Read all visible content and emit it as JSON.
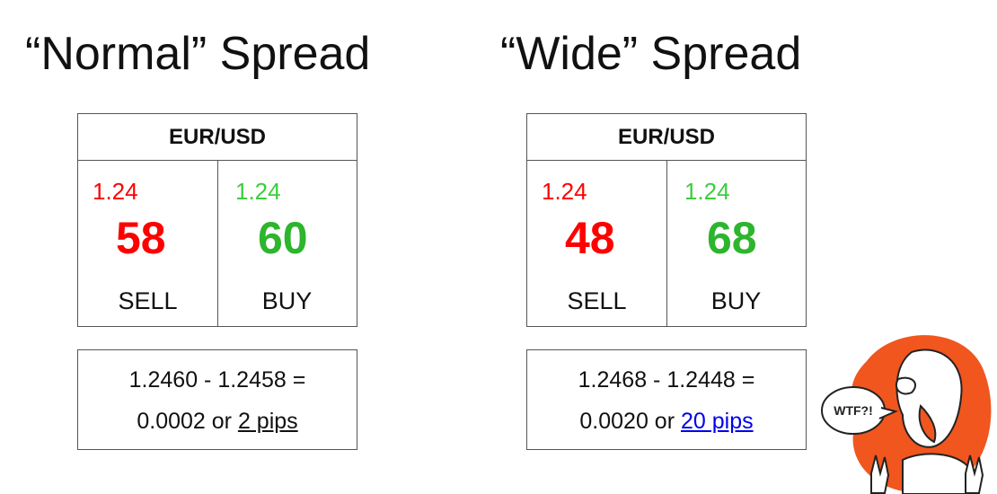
{
  "normal": {
    "title": "“Normal” Spread",
    "pair": "EUR/USD",
    "sell_prefix": "1.24",
    "sell_big": "58",
    "sell_label": "SELL",
    "buy_prefix": "1.24",
    "buy_big": "60",
    "buy_label": "BUY",
    "calc_line1": "1.2460 - 1.2458 =",
    "calc_line2_prefix": "0.0002 or ",
    "calc_pips": "2 pips"
  },
  "wide": {
    "title": "“Wide” Spread",
    "pair": "EUR/USD",
    "sell_prefix": "1.24",
    "sell_big": "48",
    "sell_label": "SELL",
    "buy_prefix": "1.24",
    "buy_big": "68",
    "buy_label": "BUY",
    "calc_line1": "1.2468 - 1.2448 =",
    "calc_line2_prefix": "0.0020 or ",
    "calc_pips": "20 pips"
  },
  "cartoon": {
    "speech": "WTF?!"
  },
  "colors": {
    "sell": "#ff0000",
    "buy": "#2db52d",
    "link": "#0000ee",
    "cartoon_bg": "#f0561e"
  }
}
